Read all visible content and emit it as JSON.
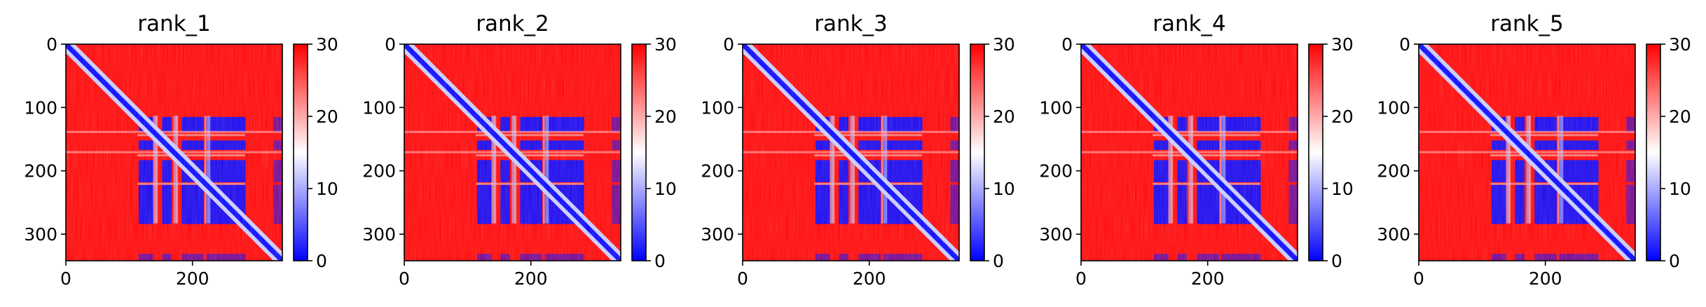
{
  "chart_data": [
    {
      "type": "heatmap",
      "title": "rank_1",
      "xticks": [
        "0",
        "200"
      ],
      "yticks": [
        "0",
        "100",
        "200",
        "300"
      ],
      "xlim": [
        0,
        342
      ],
      "ylim": [
        342,
        0
      ],
      "colorbar": {
        "ticks": [
          "0",
          "10",
          "20",
          "30"
        ],
        "range": [
          0,
          30
        ],
        "colormap": "bwr"
      }
    },
    {
      "type": "heatmap",
      "title": "rank_2",
      "xticks": [
        "0",
        "200"
      ],
      "yticks": [
        "0",
        "100",
        "200",
        "300"
      ],
      "xlim": [
        0,
        342
      ],
      "ylim": [
        342,
        0
      ],
      "colorbar": {
        "ticks": [
          "0",
          "10",
          "20",
          "30"
        ],
        "range": [
          0,
          30
        ],
        "colormap": "bwr"
      }
    },
    {
      "type": "heatmap",
      "title": "rank_3",
      "xticks": [
        "0",
        "200"
      ],
      "yticks": [
        "0",
        "100",
        "200",
        "300"
      ],
      "xlim": [
        0,
        342
      ],
      "ylim": [
        342,
        0
      ],
      "colorbar": {
        "ticks": [
          "0",
          "10",
          "20",
          "30"
        ],
        "range": [
          0,
          30
        ],
        "colormap": "bwr"
      }
    },
    {
      "type": "heatmap",
      "title": "rank_4",
      "xticks": [
        "0",
        "200"
      ],
      "yticks": [
        "0",
        "100",
        "200",
        "300"
      ],
      "xlim": [
        0,
        342
      ],
      "ylim": [
        342,
        0
      ],
      "colorbar": {
        "ticks": [
          "0",
          "10",
          "20",
          "30"
        ],
        "range": [
          0,
          30
        ],
        "colormap": "bwr"
      }
    },
    {
      "type": "heatmap",
      "title": "rank_5",
      "xticks": [
        "0",
        "200"
      ],
      "yticks": [
        "0",
        "100",
        "200",
        "300"
      ],
      "xlim": [
        0,
        342
      ],
      "ylim": [
        342,
        0
      ],
      "colorbar": {
        "ticks": [
          "0",
          "10",
          "20",
          "30"
        ],
        "range": [
          0,
          30
        ],
        "colormap": "bwr"
      }
    }
  ],
  "colors": {
    "low": "#0000ff",
    "mid": "#ffffff",
    "high": "#ff0000"
  }
}
